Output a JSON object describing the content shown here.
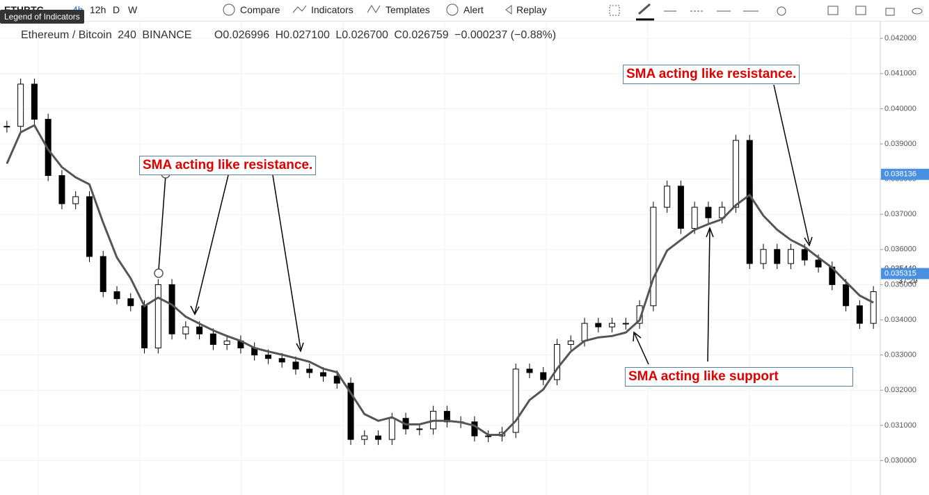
{
  "toolbar": {
    "symbol": "ETHBTC",
    "intervals": [
      "4h",
      "12h",
      "D",
      "W"
    ],
    "buttons": [
      "Compare",
      "Indicators",
      "Templates",
      "Alert",
      "Replay"
    ]
  },
  "tooltip": "Legend of Indicators",
  "legend": {
    "symbol": "Ethereum / Bitcoin",
    "interval": "240",
    "exchange": "BINANCE",
    "ohlc": [
      {
        "key": "O",
        "value": "0.026996"
      },
      {
        "key": "H",
        "value": "0.027100"
      },
      {
        "key": "L",
        "value": "0.026700"
      },
      {
        "key": "C",
        "value": "0.026759"
      }
    ],
    "change": "−0.000237 (−0.88%)"
  },
  "annotations": [
    "SMA acting like resistance.",
    "SMA acting like resistance.",
    "SMA acting like support"
  ],
  "chart_data": {
    "type": "candlestick",
    "ylim": [
      0.0291,
      0.0423
    ],
    "yticks": [
      {
        "value": 0.042,
        "label": "0.042000"
      },
      {
        "value": 0.041,
        "label": "0.041000"
      },
      {
        "value": 0.04,
        "label": "0.040000"
      },
      {
        "value": 0.039,
        "label": "0.039000"
      },
      {
        "value": 0.038,
        "label": "0.038000"
      },
      {
        "value": 0.037,
        "label": "0.037000"
      },
      {
        "value": 0.036,
        "label": "0.036000"
      },
      {
        "value": 0.035,
        "label": "0.035000"
      },
      {
        "value": 0.034,
        "label": "0.034000"
      },
      {
        "value": 0.033,
        "label": "0.033000"
      },
      {
        "value": 0.032,
        "label": "0.032000"
      },
      {
        "value": 0.031,
        "label": "0.031000"
      },
      {
        "value": 0.03,
        "label": "0.030000"
      }
    ],
    "price_labels": [
      {
        "value": 0.038136,
        "color": "#4a90e2"
      },
      {
        "value": 0.035449,
        "color": "#ffffff"
      },
      {
        "value": 0.035315,
        "color": "#4a90e2"
      }
    ],
    "countdown": "37:29",
    "grid": true,
    "closes": [
      0.0395,
      0.0407,
      0.0397,
      0.0381,
      0.0373,
      0.0375,
      0.0358,
      0.0348,
      0.0346,
      0.0344,
      0.0332,
      0.035,
      0.0336,
      0.0338,
      0.0336,
      0.0333,
      0.0334,
      0.0332,
      0.033,
      0.0329,
      0.0328,
      0.0326,
      0.0325,
      0.0324,
      0.0322,
      0.0306,
      0.0307,
      0.0306,
      0.0312,
      0.0309,
      0.0309,
      0.0314,
      0.0311,
      0.0311,
      0.0307,
      0.0307,
      0.0308,
      0.0326,
      0.0325,
      0.0323,
      0.0333,
      0.0334,
      0.0339,
      0.0338,
      0.0339,
      0.0339,
      0.0344,
      0.0372,
      0.0378,
      0.0366,
      0.0372,
      0.0369,
      0.0372,
      0.0391,
      0.0356,
      0.036,
      0.0356,
      0.036,
      0.0357,
      0.0355,
      0.035,
      0.0344,
      0.0339,
      0.0348
    ],
    "sma": [
      0.03844,
      0.03933,
      0.03953,
      0.03884,
      0.03834,
      0.03805,
      0.03785,
      0.03676,
      0.03577,
      0.03518,
      0.03439,
      0.03463,
      0.03443,
      0.03409,
      0.03389,
      0.0337,
      0.03354,
      0.0334,
      0.0332,
      0.0331,
      0.03301,
      0.03291,
      0.03281,
      0.03261,
      0.03251,
      0.03192,
      0.03132,
      0.03113,
      0.03123,
      0.03103,
      0.03103,
      0.03113,
      0.03113,
      0.03109,
      0.03099,
      0.03073,
      0.03073,
      0.03113,
      0.03172,
      0.03202,
      0.03261,
      0.0331,
      0.0334,
      0.0335,
      0.03354,
      0.03364,
      0.03399,
      0.03518,
      0.03597,
      0.03627,
      0.03656,
      0.03672,
      0.03686,
      0.03726,
      0.03755,
      0.03696,
      0.03656,
      0.03627,
      0.03607,
      0.03577,
      0.03548,
      0.03508,
      0.03469,
      0.03449
    ],
    "sma_color": "#555555",
    "up_color": "#ffffff",
    "down_color": "#000000"
  }
}
